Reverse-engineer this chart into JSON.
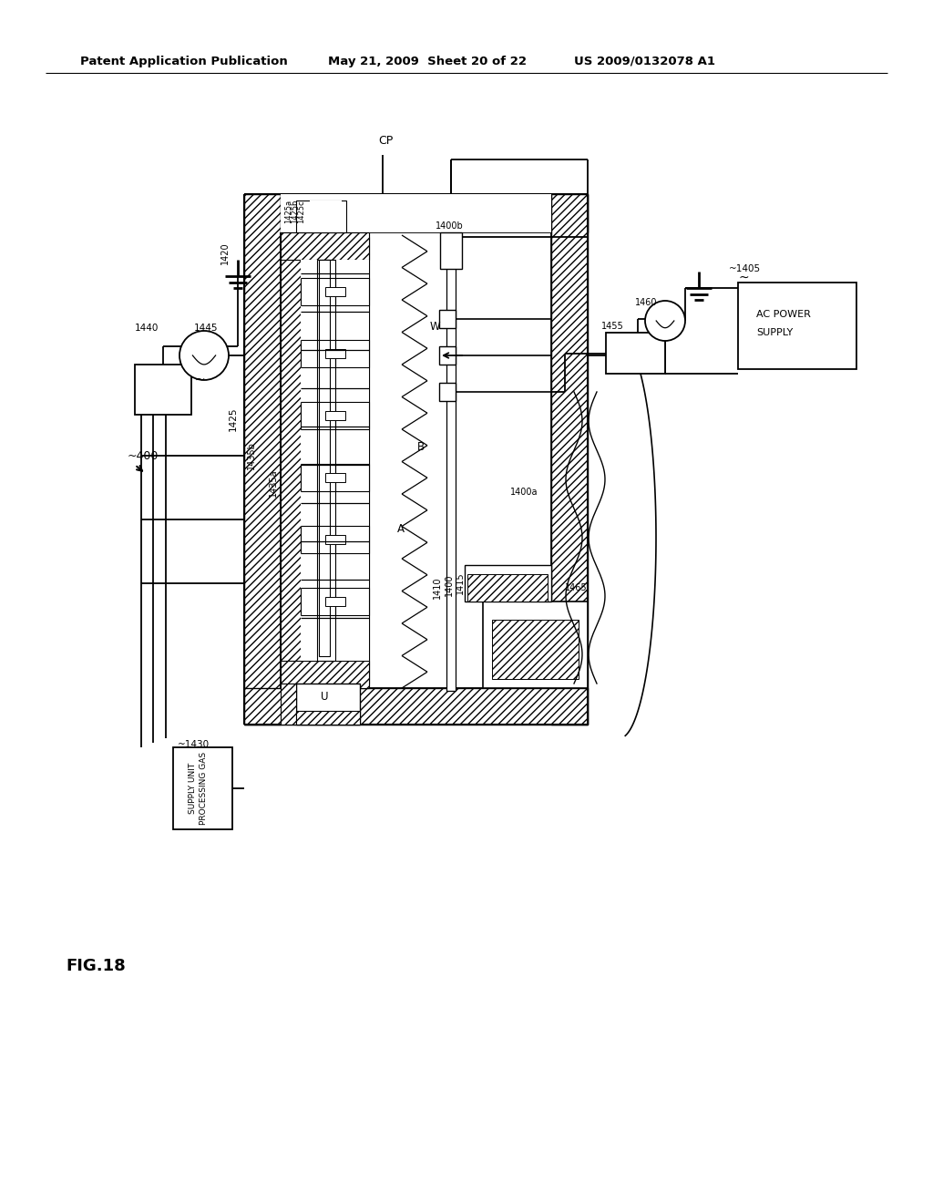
{
  "bg_color": "#ffffff",
  "header_left": "Patent Application Publication",
  "header_mid": "May 21, 2009  Sheet 20 of 22",
  "header_right": "US 2009/0132078 A1",
  "fig_label": "FIG.18"
}
